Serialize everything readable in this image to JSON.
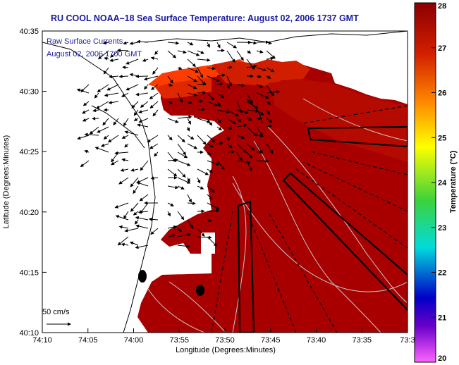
{
  "title": "RU COOL  NOAA–18  Sea Surface Temperature:  August 02, 2006 1737 GMT",
  "inset": {
    "line1": "Raw Surface Currents",
    "line2": "August 02, 2006 1700 GMT"
  },
  "scale_arrow_label": "50 cm/s",
  "axes": {
    "xlabel": "Longitude (Degrees:Minutes)",
    "ylabel": "Latitude (Degrees:Minutes)",
    "xticks": [
      "74:10",
      "74:05",
      "74:00",
      "73:55",
      "73:50",
      "73:45",
      "73:40",
      "73:35",
      "73:3"
    ],
    "yticks": [
      "40:35",
      "40:30",
      "40:25",
      "40:20",
      "40:15",
      "40:10"
    ]
  },
  "colorbar": {
    "label": "Temperature (°C)",
    "min": 20,
    "max": 28,
    "ticks": [
      "28",
      "27",
      "26",
      "25",
      "24",
      "23",
      "22",
      "21",
      "20"
    ],
    "colors": [
      "#8b0000",
      "#d21e00",
      "#ff8c00",
      "#ffff00",
      "#3cd23c",
      "#00dcdc",
      "#0000c8",
      "#ff64ff"
    ]
  },
  "colors": {
    "sst_warm": "#a80000",
    "sst_hot": "#ff3c00",
    "land": "#ffffff"
  }
}
